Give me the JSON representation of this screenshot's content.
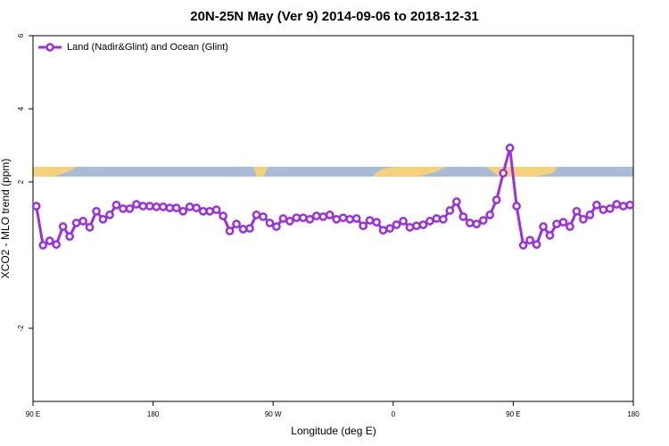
{
  "chart_data": {
    "type": "line",
    "title": "20N-25N May (Ver 9)   2014-09-06 to 2018-12-31",
    "x_label": "Longitude (deg E)",
    "y_label": "XCO2 - MLO trend (ppm)",
    "legend_position": "top-left",
    "xlim": [
      90,
      540
    ],
    "ylim": [
      -4,
      6
    ],
    "xticks": [
      {
        "value": 90,
        "label": "90 E"
      },
      180,
      {
        "value": 270,
        "label": "90 W"
      },
      {
        "value": 360,
        "label": "0"
      },
      {
        "value": 450,
        "label": "90 E"
      },
      {
        "value": 540,
        "label": "180"
      }
    ],
    "yticks": [
      -2,
      2,
      4,
      6
    ],
    "x": [
      92.5,
      97.5,
      102.5,
      107.5,
      112.5,
      117.5,
      122.5,
      127.5,
      132.5,
      137.5,
      142.5,
      147.5,
      152.5,
      157.5,
      162.5,
      167.5,
      172.5,
      177.5,
      182.5,
      187.5,
      192.5,
      197.5,
      202.5,
      207.5,
      212.5,
      217.5,
      222.5,
      227.5,
      232.5,
      237.5,
      242.5,
      247.5,
      252.5,
      257.5,
      262.5,
      267.5,
      272.5,
      277.5,
      282.5,
      287.5,
      292.5,
      297.5,
      302.5,
      307.5,
      312.5,
      317.5,
      322.5,
      327.5,
      332.5,
      337.5,
      342.5,
      347.5,
      352.5,
      357.5,
      362.5,
      367.5,
      372.5,
      377.5,
      382.5,
      387.5,
      392.5,
      397.5,
      402.5,
      407.5,
      412.5,
      417.5,
      422.5,
      427.5,
      432.5,
      437.5,
      442.5,
      447.5,
      452.5,
      457.5,
      462.5,
      467.5,
      472.5,
      477.5,
      482.5,
      487.5,
      492.5,
      497.5,
      502.5,
      507.5,
      512.5,
      517.5,
      522.5,
      527.5,
      532.5,
      537.5
    ],
    "series": [
      {
        "name": "Land (Nadir&Glint) and Ocean (Glint)",
        "color": "#9b30e0",
        "values": [
          1.34,
          0.27,
          0.39,
          0.29,
          0.78,
          0.51,
          0.88,
          0.93,
          0.76,
          1.2,
          0.98,
          1.1,
          1.37,
          1.27,
          1.27,
          1.39,
          1.34,
          1.34,
          1.32,
          1.32,
          1.29,
          1.29,
          1.2,
          1.32,
          1.29,
          1.2,
          1.2,
          1.24,
          1.07,
          0.66,
          0.85,
          0.71,
          0.73,
          1.1,
          1.05,
          0.88,
          0.78,
          1.0,
          0.93,
          1.02,
          1.02,
          0.98,
          1.07,
          1.05,
          1.1,
          0.98,
          1.02,
          0.98,
          1.0,
          0.8,
          0.95,
          0.9,
          0.68,
          0.73,
          0.83,
          0.93,
          0.76,
          0.8,
          0.83,
          0.93,
          1.0,
          0.98,
          1.22,
          1.46,
          1.05,
          0.88,
          0.85,
          0.95,
          1.1,
          1.51,
          2.24,
          2.93,
          1.34,
          0.27,
          0.41,
          0.29,
          0.78,
          0.54,
          0.85,
          0.9,
          0.78,
          1.2,
          0.98,
          1.1,
          1.37,
          1.24,
          1.27,
          1.39,
          1.34,
          1.37
        ]
      }
    ]
  }
}
